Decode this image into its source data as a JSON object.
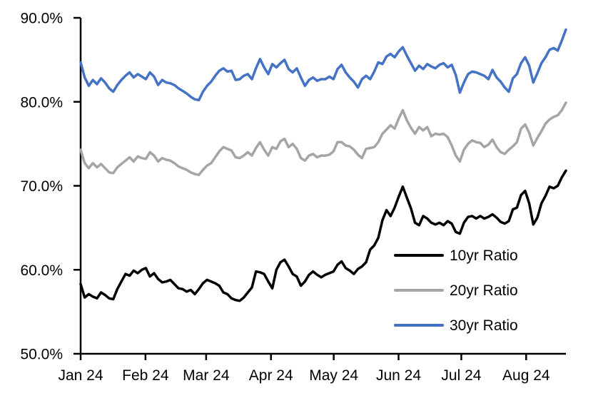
{
  "chart_data": {
    "type": "line",
    "title": "",
    "grid": "off",
    "background": "#ffffff",
    "x_axis": {
      "tick_labels": [
        "Jan 24",
        "Feb 24",
        "Mar 24",
        "Apr 24",
        "May 24",
        "Jun 24",
        "Jul 24",
        "Aug 24"
      ],
      "tick_day_offsets": [
        0,
        31,
        60,
        91,
        121,
        152,
        182,
        213
      ],
      "span_days": 232
    },
    "y_axis": {
      "tick_labels": [
        "50.0%",
        "60.0%",
        "70.0%",
        "80.0%",
        "90.0%"
      ],
      "tick_values": [
        50,
        60,
        70,
        80,
        90
      ],
      "ylim": [
        50,
        90
      ],
      "unit": "%"
    },
    "legend": {
      "position": "inside-lower-right",
      "entries": [
        "10yr Ratio",
        "20yr Ratio",
        "30yr Ratio"
      ]
    },
    "series": [
      {
        "name": "10yr Ratio",
        "color": "#000000",
        "values": [
          58.3,
          56.7,
          57.1,
          56.8,
          56.6,
          57.3,
          57.0,
          56.6,
          56.5,
          57.7,
          58.6,
          59.5,
          59.3,
          59.9,
          59.6,
          60.0,
          60.2,
          59.2,
          59.6,
          58.9,
          58.5,
          58.6,
          58.8,
          58.3,
          57.8,
          57.7,
          57.4,
          57.6,
          57.1,
          57.7,
          58.4,
          58.8,
          58.6,
          58.4,
          58.1,
          57.3,
          57.1,
          56.6,
          56.4,
          56.3,
          56.7,
          57.3,
          57.9,
          59.8,
          59.7,
          59.5,
          58.6,
          57.8,
          60.0,
          60.9,
          61.2,
          60.4,
          59.5,
          59.2,
          58.1,
          58.6,
          59.4,
          59.8,
          59.4,
          59.1,
          59.4,
          59.6,
          59.8,
          60.6,
          61.0,
          60.2,
          59.9,
          59.5,
          60.1,
          60.4,
          60.9,
          62.4,
          62.9,
          63.8,
          65.9,
          67.1,
          66.4,
          67.4,
          68.7,
          69.9,
          68.6,
          67.3,
          65.6,
          65.3,
          66.4,
          66.1,
          65.6,
          65.4,
          65.6,
          65.3,
          65.8,
          65.5,
          64.5,
          64.3,
          65.6,
          66.3,
          66.4,
          66.1,
          66.4,
          66.1,
          66.3,
          66.6,
          66.2,
          65.7,
          65.5,
          65.8,
          67.2,
          67.4,
          68.9,
          69.4,
          67.9,
          65.4,
          66.2,
          67.9,
          68.8,
          69.9,
          69.7,
          70.0,
          71.0,
          71.8
        ]
      },
      {
        "name": "20yr Ratio",
        "color": "#A5A5A5",
        "values": [
          74.3,
          72.7,
          72.1,
          72.7,
          72.2,
          72.6,
          72.1,
          71.6,
          71.5,
          72.2,
          72.6,
          73.0,
          73.4,
          72.9,
          73.5,
          73.3,
          73.2,
          74.0,
          73.6,
          72.9,
          73.3,
          73.1,
          73.0,
          72.7,
          72.3,
          72.1,
          71.9,
          71.6,
          71.4,
          71.3,
          71.9,
          72.4,
          72.7,
          73.4,
          74.1,
          74.6,
          74.4,
          74.2,
          73.4,
          73.3,
          73.6,
          74.0,
          73.6,
          74.5,
          75.2,
          74.3,
          73.6,
          74.6,
          74.4,
          75.3,
          75.6,
          74.6,
          75.0,
          74.4,
          73.3,
          73.0,
          73.6,
          73.8,
          73.4,
          73.6,
          73.6,
          73.7,
          74.1,
          75.2,
          75.2,
          74.8,
          74.7,
          74.3,
          73.7,
          73.3,
          74.4,
          74.5,
          74.6,
          75.2,
          76.2,
          76.7,
          77.2,
          76.8,
          78.0,
          79.0,
          77.8,
          76.9,
          76.2,
          77.0,
          76.6,
          77.0,
          75.9,
          76.2,
          76.1,
          76.2,
          75.8,
          74.8,
          73.6,
          72.9,
          74.3,
          75.0,
          75.4,
          75.2,
          75.1,
          74.6,
          74.9,
          75.5,
          74.6,
          74.0,
          73.8,
          74.3,
          74.7,
          75.2,
          76.8,
          77.3,
          76.3,
          74.8,
          75.7,
          76.5,
          77.4,
          77.9,
          78.2,
          78.4,
          79.0,
          79.9
        ]
      },
      {
        "name": "30yr Ratio",
        "color": "#4472C4",
        "values": [
          84.7,
          82.9,
          81.9,
          82.6,
          82.1,
          82.8,
          82.3,
          81.6,
          81.2,
          82.0,
          82.6,
          83.1,
          83.5,
          82.9,
          83.3,
          83.0,
          82.7,
          83.5,
          83.0,
          82.0,
          82.6,
          82.3,
          82.2,
          82.0,
          81.6,
          81.3,
          81.0,
          80.6,
          80.3,
          80.2,
          81.2,
          81.9,
          82.4,
          83.1,
          83.7,
          84.0,
          83.6,
          83.7,
          82.6,
          82.7,
          83.1,
          83.3,
          82.7,
          84.0,
          85.1,
          84.1,
          83.3,
          84.5,
          84.1,
          84.6,
          85.0,
          83.9,
          83.5,
          84.0,
          82.9,
          81.9,
          82.6,
          82.9,
          82.5,
          82.7,
          82.7,
          83.0,
          82.7,
          83.9,
          84.4,
          83.5,
          82.9,
          82.4,
          81.7,
          82.7,
          83.1,
          82.7,
          83.6,
          84.7,
          84.5,
          85.4,
          85.7,
          85.3,
          86.0,
          86.5,
          85.5,
          84.6,
          83.7,
          84.3,
          83.9,
          84.5,
          84.2,
          84.0,
          84.4,
          84.6,
          84.1,
          84.4,
          83.2,
          81.1,
          82.3,
          83.3,
          83.6,
          83.5,
          83.3,
          83.1,
          82.7,
          83.8,
          82.9,
          82.4,
          81.7,
          81.2,
          82.8,
          83.3,
          84.6,
          85.3,
          84.3,
          82.3,
          83.4,
          84.6,
          85.3,
          86.2,
          86.4,
          86.1,
          87.3,
          88.6
        ]
      }
    ]
  }
}
